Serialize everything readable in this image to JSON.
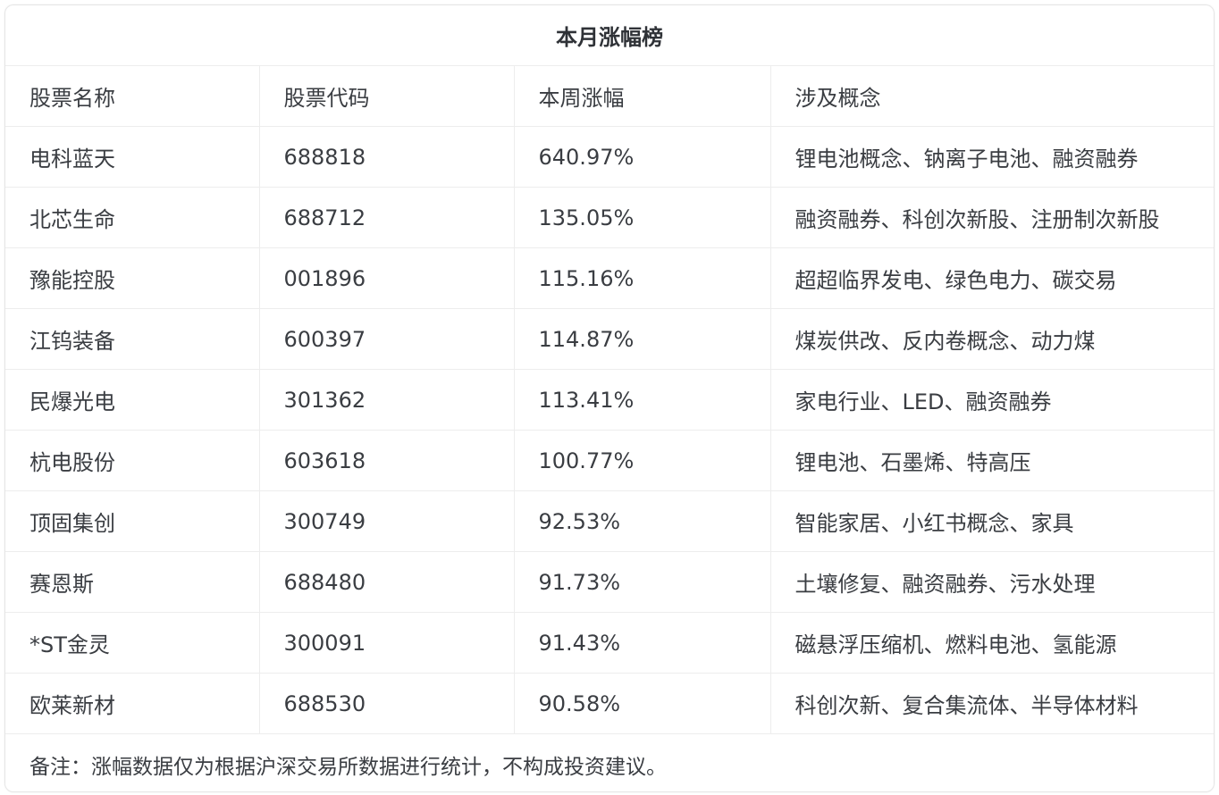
{
  "title": "本月涨幅榜",
  "headers": [
    "股票名称",
    "股票代码",
    "本周涨幅",
    "涉及概念"
  ],
  "rows": [
    [
      "电科蓝天",
      "688818",
      "640.97%",
      "锂电池概念、钠离子电池、融资融券"
    ],
    [
      "北芯生命",
      "688712",
      "135.05%",
      "融资融券、科创次新股、注册制次新股"
    ],
    [
      "豫能控股",
      "001896",
      "115.16%",
      "超超临界发电、绿色电力、碳交易"
    ],
    [
      "江钨装备",
      "600397",
      "114.87%",
      "煤炭供改、反内卷概念、动力煤"
    ],
    [
      "民爆光电",
      "301362",
      "113.41%",
      "家电行业、LED、融资融券"
    ],
    [
      "杭电股份",
      "603618",
      "100.77%",
      "锂电池、石墨烯、特高压"
    ],
    [
      "顶固集创",
      "300749",
      "92.53%",
      "智能家居、小红书概念、家具"
    ],
    [
      "赛恩斯",
      "688480",
      "91.73%",
      "土壤修复、融资融券、污水处理"
    ],
    [
      "*ST金灵",
      "300091",
      "91.43%",
      "磁悬浮压缩机、燃料电池、氢能源"
    ],
    [
      "欧莱新材",
      "688530",
      "90.58%",
      "科创次新、复合集流体、半导体材料"
    ]
  ],
  "footnote": "备注：涨幅数据仅为根据沪深交易所数据进行统计，不构成投资建议。"
}
